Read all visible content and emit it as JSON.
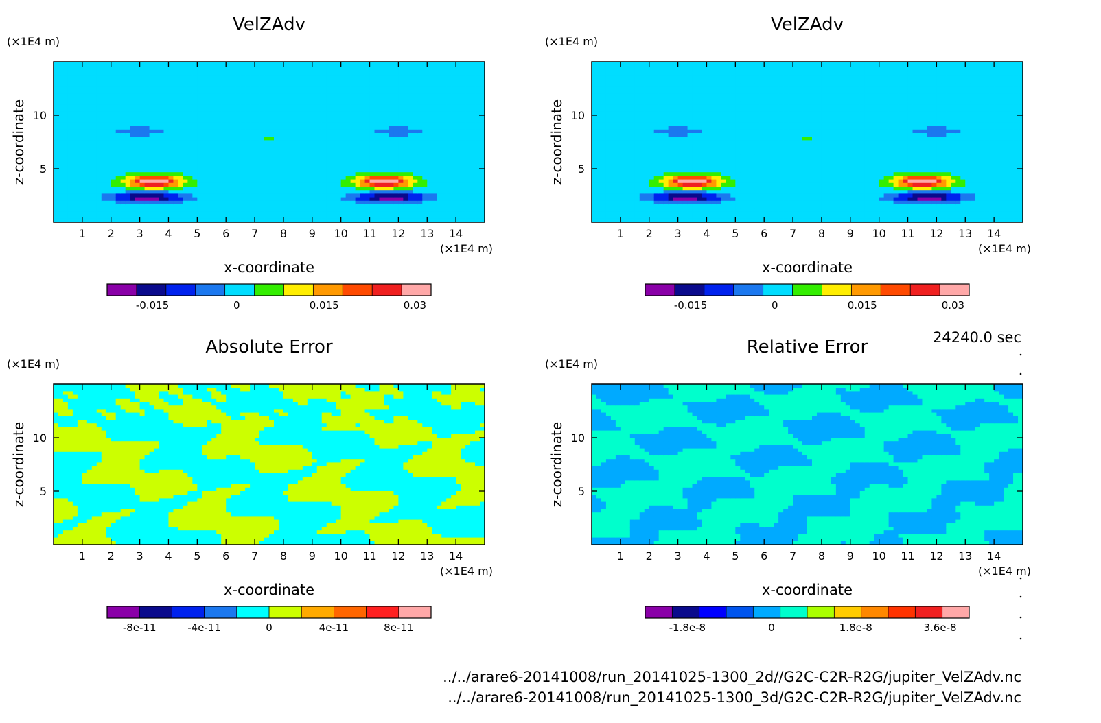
{
  "time_label": "24240.0 sec",
  "footer": {
    "file1": "../../arare6-20141008/run_20141025-1300_2d//G2C-C2R-R2G/jupiter_VelZAdv.nc",
    "file2": "../../arare6-20141008/run_20141025-1300_3d/G2C-C2R-R2G/jupiter_VelZAdv.nc"
  },
  "chart_data": [
    {
      "type": "heatmap",
      "title": "VelZAdv",
      "xlabel": "x-coordinate",
      "ylabel": "z-coordinate",
      "x_unit": "(×1E4 m)",
      "y_unit": "(×1E4 m)",
      "xlim": [
        0,
        15
      ],
      "ylim": [
        0,
        15
      ],
      "xticks": [
        "1",
        "2",
        "3",
        "4",
        "5",
        "6",
        "7",
        "8",
        "9",
        "10",
        "11",
        "12",
        "13",
        "14"
      ],
      "yticks": [
        "5",
        "10"
      ],
      "field": "jet",
      "colorbar": {
        "colors": [
          "#8a00a8",
          "#0a0a8c",
          "#0022ee",
          "#1b78ef",
          "#00ddff",
          "#33ee00",
          "#ffee00",
          "#ff9900",
          "#ff4a00",
          "#f02020",
          "#ffa8a8"
        ],
        "ticks": [
          "-0.015",
          "0",
          "0.015",
          "0.03"
        ],
        "tick_pos": [
          0.14,
          0.4,
          0.67,
          0.95
        ]
      }
    },
    {
      "type": "heatmap",
      "title": "VelZAdv",
      "xlabel": "x-coordinate",
      "ylabel": "z-coordinate",
      "x_unit": "(×1E4 m)",
      "y_unit": "(×1E4 m)",
      "xlim": [
        0,
        15
      ],
      "ylim": [
        0,
        15
      ],
      "xticks": [
        "1",
        "2",
        "3",
        "4",
        "5",
        "6",
        "7",
        "8",
        "9",
        "10",
        "11",
        "12",
        "13",
        "14"
      ],
      "yticks": [
        "5",
        "10"
      ],
      "field": "jet",
      "colorbar": {
        "colors": [
          "#8a00a8",
          "#0a0a8c",
          "#0022ee",
          "#1b78ef",
          "#00ddff",
          "#33ee00",
          "#ffee00",
          "#ff9900",
          "#ff4a00",
          "#f02020",
          "#ffa8a8"
        ],
        "ticks": [
          "-0.015",
          "0",
          "0.015",
          "0.03"
        ],
        "tick_pos": [
          0.14,
          0.4,
          0.67,
          0.95
        ]
      }
    },
    {
      "type": "heatmap",
      "title": "Absolute Error",
      "xlabel": "x-coordinate",
      "ylabel": "z-coordinate",
      "x_unit": "(×1E4 m)",
      "y_unit": "(×1E4 m)",
      "xlim": [
        0,
        15
      ],
      "ylim": [
        0,
        15
      ],
      "xticks": [
        "1",
        "2",
        "3",
        "4",
        "5",
        "6",
        "7",
        "8",
        "9",
        "10",
        "11",
        "12",
        "13",
        "14"
      ],
      "yticks": [
        "5",
        "10"
      ],
      "field": "abs",
      "colorbar": {
        "colors": [
          "#8a00a8",
          "#0a0a8c",
          "#0022ee",
          "#1b78ef",
          "#00ffff",
          "#ccff00",
          "#ffaa00",
          "#ff6600",
          "#ff2020",
          "#ffa8a8"
        ],
        "ticks": [
          "-8e-11",
          "-4e-11",
          "0",
          "4e-11",
          "8e-11"
        ],
        "tick_pos": [
          0.1,
          0.3,
          0.5,
          0.7,
          0.9
        ]
      }
    },
    {
      "type": "heatmap",
      "title": "Relative Error",
      "xlabel": "x-coordinate",
      "ylabel": "z-coordinate",
      "x_unit": "(×1E4 m)",
      "y_unit": "(×1E4 m)",
      "xlim": [
        0,
        15
      ],
      "ylim": [
        0,
        15
      ],
      "xticks": [
        "1",
        "2",
        "3",
        "4",
        "5",
        "6",
        "7",
        "8",
        "9",
        "10",
        "11",
        "12",
        "13",
        "14"
      ],
      "yticks": [
        "5",
        "10"
      ],
      "field": "rel",
      "colorbar": {
        "colors": [
          "#8a00a8",
          "#0a0a8c",
          "#0000ff",
          "#0055ee",
          "#00aaff",
          "#00ffcc",
          "#aaff00",
          "#ffcc00",
          "#ff8800",
          "#ff3300",
          "#f02020",
          "#ffa8a8"
        ],
        "ticks": [
          "-1.8e-8",
          "0",
          "1.8e-8",
          "3.6e-8"
        ],
        "tick_pos": [
          0.13,
          0.39,
          0.65,
          0.91
        ]
      }
    }
  ]
}
